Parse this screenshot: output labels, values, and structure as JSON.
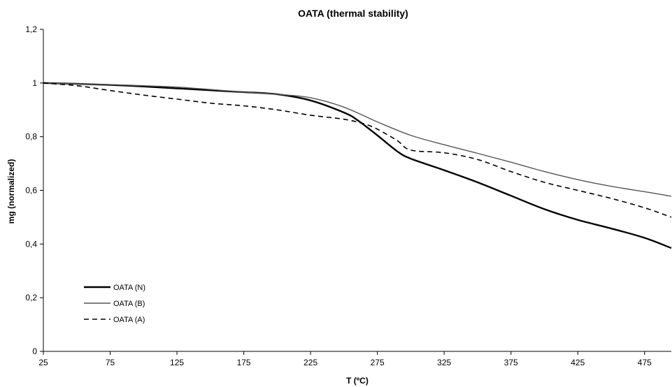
{
  "chart_data": {
    "type": "line",
    "title": "OATA (thermal stability)",
    "xlabel": "T (ºC)",
    "ylabel": "mg (normalized)",
    "xlim": [
      25,
      495
    ],
    "ylim": [
      0,
      1.2
    ],
    "x_ticks": [
      25,
      75,
      125,
      175,
      225,
      275,
      325,
      375,
      425,
      475
    ],
    "x_tick_labels": [
      "25",
      "75",
      "125",
      "175",
      "225",
      "275",
      "325",
      "375",
      "425",
      "475"
    ],
    "y_ticks": [
      0,
      0.2,
      0.4,
      0.6,
      0.8,
      1,
      1.2
    ],
    "y_tick_labels": [
      "0",
      "0,2",
      "0,4",
      "0,6",
      "0,8",
      "1",
      "1,2"
    ],
    "grid": false,
    "legend_position": "bottom-left",
    "series": [
      {
        "name": "OATA (N)",
        "style": "solid-thick",
        "color": "#000000",
        "x": [
          25,
          50,
          75,
          100,
          125,
          150,
          175,
          200,
          225,
          250,
          260,
          275,
          290,
          300,
          325,
          350,
          375,
          400,
          425,
          450,
          475,
          495
        ],
        "y": [
          1.0,
          0.997,
          0.993,
          0.987,
          0.98,
          0.973,
          0.966,
          0.958,
          0.935,
          0.89,
          0.862,
          0.805,
          0.745,
          0.718,
          0.675,
          0.63,
          0.58,
          0.53,
          0.49,
          0.458,
          0.423,
          0.385
        ]
      },
      {
        "name": "OATA (B)",
        "style": "solid-thin",
        "color": "#555555",
        "x": [
          25,
          50,
          75,
          100,
          125,
          150,
          175,
          200,
          225,
          250,
          275,
          300,
          325,
          350,
          375,
          400,
          425,
          450,
          475,
          495
        ],
        "y": [
          1.0,
          0.997,
          0.994,
          0.99,
          0.985,
          0.976,
          0.966,
          0.958,
          0.945,
          0.91,
          0.855,
          0.805,
          0.77,
          0.738,
          0.705,
          0.67,
          0.64,
          0.615,
          0.595,
          0.578
        ]
      },
      {
        "name": "OATA (A)",
        "style": "dashed",
        "color": "#000000",
        "x": [
          25,
          50,
          75,
          100,
          125,
          150,
          175,
          200,
          225,
          250,
          265,
          275,
          290,
          300,
          325,
          350,
          375,
          400,
          425,
          450,
          475,
          495
        ],
        "y": [
          1.0,
          0.99,
          0.972,
          0.955,
          0.94,
          0.925,
          0.915,
          0.9,
          0.88,
          0.865,
          0.848,
          0.828,
          0.785,
          0.75,
          0.74,
          0.715,
          0.67,
          0.63,
          0.6,
          0.57,
          0.535,
          0.5
        ]
      }
    ]
  }
}
